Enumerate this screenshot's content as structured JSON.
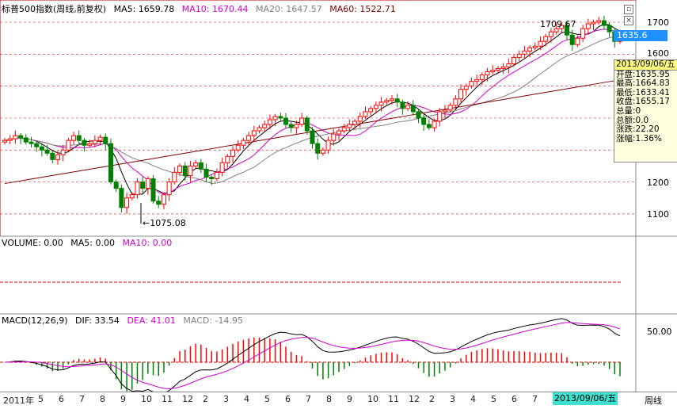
{
  "header": {
    "title": "标普500指数(周线,前复权)",
    "ma5": "MA5: 1659.78",
    "ma10": "MA10: 1670.44",
    "ma20": "MA20: 1647.57",
    "ma60": "MA60: 1522.71"
  },
  "price_axis": [
    "1700",
    "1600",
    "1200",
    "1100"
  ],
  "last_price": "1635.6",
  "annotations": {
    "high": "1709.67",
    "low": "1075.08"
  },
  "info_panel": {
    "date": "2013/09/06/五",
    "rows": [
      "开盘:1635.95",
      "最高:1664.83",
      "最低:1633.41",
      "收盘:1655.17",
      "总量:0",
      "总额:0.0",
      "涨跌:22.20",
      "涨幅:1.36%"
    ]
  },
  "volume": {
    "label": "VOLUME: 0.00",
    "ma5": "MA5: 0.00",
    "ma10": "MA10: 0.00"
  },
  "macd": {
    "label": "MACD(12,26,9)",
    "dif": "DIF: 33.54",
    "dea": "DEA: 41.01",
    "macd": "MACD: -14.95",
    "axis": "50.00"
  },
  "time_axis": [
    "2011年",
    "5",
    "6",
    "7",
    "8",
    "9",
    "10",
    "11",
    "12",
    "2",
    "3",
    "4",
    "5",
    "6",
    "7",
    "8",
    "9",
    "10",
    "11",
    "12",
    "2",
    "3",
    "4",
    "5",
    "6",
    "7"
  ],
  "selected_date": "2013/09/06/五",
  "period_button": "周线",
  "colors": {
    "up": "#ff0000",
    "down": "#008000",
    "ma5": "#000000",
    "ma10": "#d000d0",
    "ma20": "#808080",
    "ma60": "#800000",
    "grid": "#d04040",
    "accent": "#1e90ff"
  },
  "chart_data": {
    "type": "candlestick",
    "x_range": [
      "2011-04",
      "2013-09"
    ],
    "y_range": [
      1050,
      1720
    ],
    "closes": [
      1330,
      1335,
      1345,
      1338,
      1325,
      1320,
      1310,
      1300,
      1290,
      1270,
      1285,
      1300,
      1330,
      1345,
      1330,
      1315,
      1320,
      1330,
      1340,
      1320,
      1200,
      1180,
      1120,
      1150,
      1160,
      1200,
      1180,
      1210,
      1140,
      1130,
      1160,
      1200,
      1230,
      1250,
      1220,
      1250,
      1260,
      1240,
      1215,
      1210,
      1230,
      1260,
      1280,
      1300,
      1315,
      1330,
      1345,
      1360,
      1370,
      1380,
      1395,
      1405,
      1400,
      1380,
      1370,
      1380,
      1400,
      1360,
      1320,
      1290,
      1300,
      1330,
      1350,
      1360,
      1370,
      1380,
      1390,
      1405,
      1420,
      1430,
      1440,
      1450,
      1455,
      1460,
      1450,
      1430,
      1440,
      1420,
      1400,
      1380,
      1370,
      1390,
      1420,
      1425,
      1440,
      1460,
      1490,
      1500,
      1515,
      1520,
      1535,
      1545,
      1550,
      1555,
      1560,
      1570,
      1590,
      1600,
      1610,
      1620,
      1625,
      1640,
      1655,
      1670,
      1680,
      1690,
      1660,
      1630,
      1650,
      1680,
      1695,
      1700,
      1705,
      1690,
      1670,
      1640,
      1655
    ]
  }
}
